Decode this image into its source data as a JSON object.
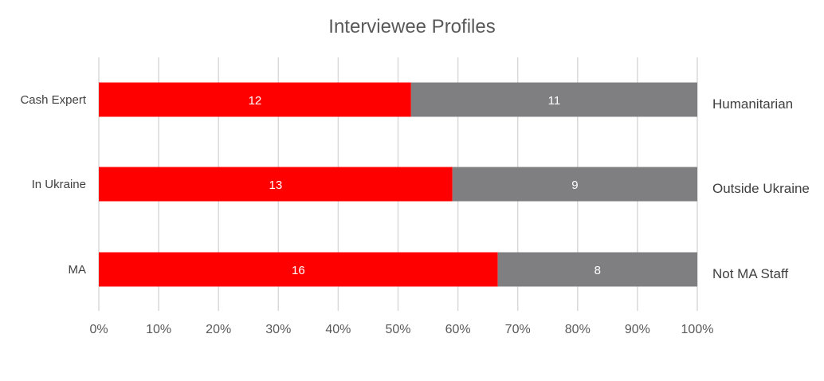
{
  "chart_data": {
    "type": "bar",
    "orientation": "horizontal",
    "stacking": "percent",
    "title": "Interviewee Profiles",
    "xlim": [
      0,
      100
    ],
    "x_ticks": [
      "0%",
      "10%",
      "20%",
      "30%",
      "40%",
      "50%",
      "60%",
      "70%",
      "80%",
      "90%",
      "100%"
    ],
    "grid": true,
    "legend": "none",
    "categories": [
      "Cash Expert",
      "In Ukraine",
      "MA"
    ],
    "right_labels": [
      "Humanitarian",
      "Outside Ukraine",
      "Not MA Staff"
    ],
    "series": [
      {
        "values": [
          12,
          13,
          16
        ],
        "color": "#ff0000"
      },
      {
        "values": [
          11,
          9,
          8
        ],
        "color": "#7f7f81"
      }
    ]
  }
}
